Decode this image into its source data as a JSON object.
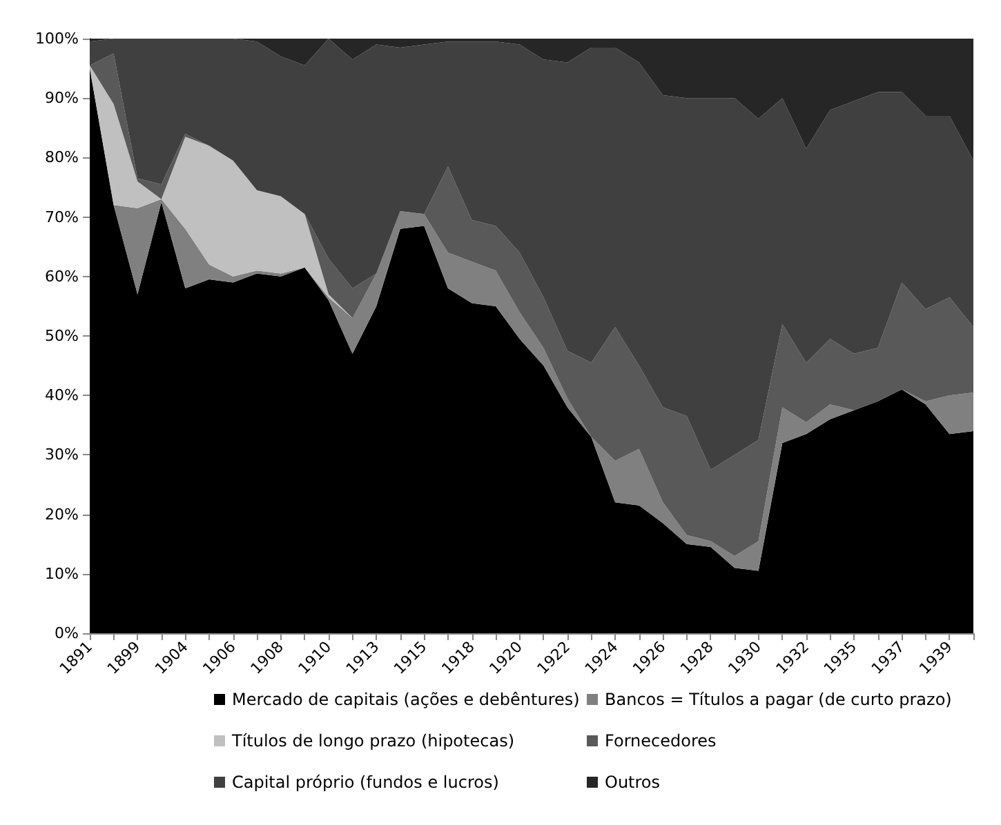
{
  "chart_data": {
    "type": "area",
    "stacked": true,
    "legend": "bottom",
    "grid": false,
    "categories": [
      "1891",
      null,
      "1899",
      null,
      "1904",
      null,
      "1906",
      null,
      "1908",
      null,
      "1910",
      null,
      "1913",
      null,
      "1915",
      null,
      "1918",
      null,
      "1920",
      null,
      "1922",
      null,
      "1924",
      null,
      "1926",
      null,
      "1928",
      null,
      "1930",
      null,
      "1932",
      null,
      "1935",
      null,
      "1937",
      null,
      "1939",
      null
    ],
    "ylim": [
      0,
      100
    ],
    "yticks": [
      {
        "value": 0,
        "label": "0%"
      },
      {
        "value": 10,
        "label": "10%"
      },
      {
        "value": 20,
        "label": "20%"
      },
      {
        "value": 30,
        "label": "30%"
      },
      {
        "value": 40,
        "label": "40%"
      },
      {
        "value": 50,
        "label": "50%"
      },
      {
        "value": 60,
        "label": "60%"
      },
      {
        "value": 70,
        "label": "70%"
      },
      {
        "value": 80,
        "label": "80%"
      },
      {
        "value": 90,
        "label": "90%"
      },
      {
        "value": 100,
        "label": "100%"
      }
    ],
    "series": [
      {
        "name": "Mercado de capitais (ações e debêntures)",
        "color": "#000000",
        "values": [
          95,
          72,
          57,
          72.5,
          58,
          59.5,
          59,
          60.5,
          60,
          61.5,
          56,
          47,
          55,
          68,
          68.5,
          58,
          55.5,
          55,
          49.5,
          45,
          38,
          33,
          22,
          21.5,
          18.5,
          15,
          14.5,
          11,
          10.5,
          32,
          33.5,
          36,
          37.5,
          39,
          41,
          38.5,
          33.5,
          34
        ]
      },
      {
        "name": "Bancos = Títulos a pagar (de curto prazo)",
        "color": "#808080",
        "values": [
          0,
          0,
          14.5,
          0.5,
          10,
          2.5,
          1,
          0.5,
          0.5,
          0,
          0.5,
          6,
          5.5,
          3,
          2,
          6,
          7,
          6,
          4.5,
          3,
          1.5,
          0,
          7,
          9.5,
          3.5,
          1.5,
          1,
          2,
          5,
          6,
          2,
          2.5,
          0,
          0,
          0,
          0.5,
          6.5,
          6.5
        ]
      },
      {
        "name": "Títulos de longo prazo (hipotecas)",
        "color": "#c0c0c0",
        "values": [
          0.5,
          17,
          4.5,
          0,
          15.5,
          20,
          19.5,
          13.5,
          13,
          9,
          0.5,
          0,
          0,
          0,
          0,
          0,
          0,
          0,
          0,
          0,
          0,
          0,
          0,
          0,
          0,
          0,
          0,
          0,
          0,
          0,
          0,
          0,
          0,
          0,
          0,
          0,
          0,
          0
        ]
      },
      {
        "name": "Fornecedores",
        "color": "#595959",
        "values": [
          0,
          8.5,
          0.5,
          2.5,
          0.5,
          0,
          0,
          0,
          0,
          0,
          6,
          5,
          0,
          0,
          0,
          14.5,
          7,
          7.5,
          10,
          8.5,
          8,
          12.5,
          22.5,
          14,
          16,
          20,
          12,
          17,
          17,
          14,
          10,
          11,
          9.5,
          9,
          18,
          15.5,
          16.5,
          11
        ]
      },
      {
        "name": "Capital próprio (fundos e lucros)",
        "color": "#404040",
        "values": [
          4,
          2.5,
          23.5,
          24.5,
          16,
          18,
          20.5,
          25,
          23.5,
          25,
          37,
          38.5,
          38.5,
          27.5,
          28.5,
          21,
          30,
          31,
          35,
          40,
          48.5,
          53,
          47,
          51,
          52.5,
          53.5,
          62.5,
          60,
          54,
          38,
          36,
          38.5,
          42.5,
          43,
          32,
          32.5,
          30.5,
          28
        ]
      },
      {
        "name": "Outros",
        "color": "#262626",
        "values": [
          0.5,
          0,
          0,
          0,
          0,
          0,
          0,
          0.5,
          3,
          4.5,
          0,
          3.5,
          1,
          1.5,
          1,
          0.5,
          0.5,
          0.5,
          1,
          3.5,
          4,
          1.5,
          1.5,
          4,
          9.5,
          10,
          10,
          10,
          13.5,
          10,
          18.5,
          12,
          10.5,
          9,
          9,
          13,
          13,
          20.5
        ]
      }
    ]
  }
}
